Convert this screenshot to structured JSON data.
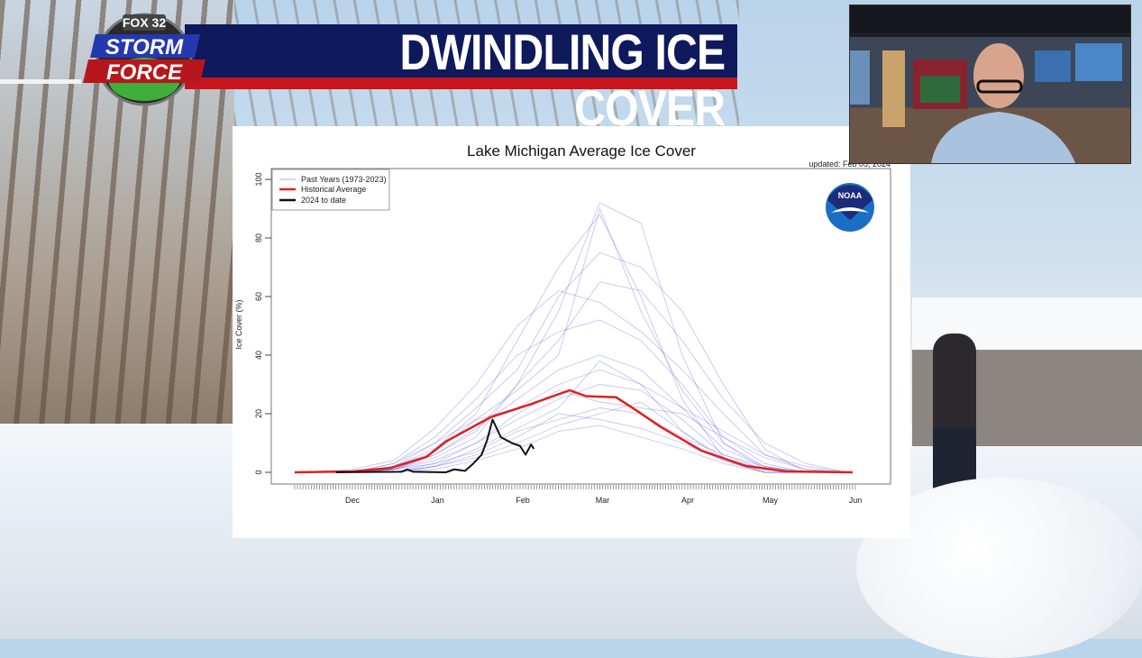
{
  "broadcast": {
    "station_logo": "FOX 32",
    "logo_line1": "STORM",
    "logo_line2": "FORCE",
    "headline": "DWINDLING ICE COVER"
  },
  "colors": {
    "banner_blue": "#0e1a5c",
    "banner_red": "#c8151b",
    "past_years": "#5a5ae6",
    "historical_average": "#e0201c",
    "current_year": "#111111",
    "noaa_blue": "#1a6fc4"
  },
  "chart_data": {
    "type": "line",
    "title": "Lake Michigan Average Ice Cover",
    "updated": "updated: Feb 05, 2024",
    "xlabel": "",
    "ylabel": "Ice Cover (%)",
    "ylim": [
      0,
      100
    ],
    "yticks": [
      0,
      20,
      40,
      60,
      80,
      100
    ],
    "x_units": "days since Dec 1",
    "xlim": [
      -21,
      183
    ],
    "month_ticks": [
      {
        "label": "Dec",
        "day": 0
      },
      {
        "label": "Jan",
        "day": 31
      },
      {
        "label": "Feb",
        "day": 62
      },
      {
        "label": "Mar",
        "day": 91
      },
      {
        "label": "Apr",
        "day": 122
      },
      {
        "label": "May",
        "day": 152
      },
      {
        "label": "Jun",
        "day": 183
      }
    ],
    "legend": {
      "position": "top-left",
      "entries": [
        "Past Years (1973-2023)",
        "Historical Average",
        "2024 to date"
      ]
    },
    "logo": "NOAA",
    "series": [
      {
        "name": "Historical Average",
        "x": [
          -21,
          0,
          14,
          27,
          34,
          50,
          65,
          79,
          85,
          96,
          104,
          112,
          127,
          143,
          158,
          182
        ],
        "y": [
          0,
          0.3,
          1.5,
          5.3,
          10.5,
          18.7,
          23.3,
          28,
          26,
          25.6,
          20.7,
          15.6,
          7.4,
          2.2,
          0.3,
          0
        ]
      },
      {
        "name": "2024 to date",
        "x": [
          -6,
          18,
          20,
          22,
          34,
          37,
          41,
          44,
          47,
          49,
          51,
          54,
          58,
          61,
          63,
          65,
          66
        ],
        "y": [
          0,
          0.2,
          1,
          0.2,
          0,
          1,
          0.5,
          3,
          6,
          11,
          18,
          12,
          10,
          9,
          6,
          9.5,
          8
        ]
      },
      {
        "name": "Past Years (1973-2023)",
        "x": [
          -15,
          0,
          15,
          30,
          45,
          60,
          75,
          90,
          105,
          120,
          135,
          150,
          165,
          180
        ],
        "years": [
          [
            0,
            0,
            2,
            8,
            20,
            45,
            70,
            88,
            60,
            25,
            5,
            0,
            0,
            0
          ],
          [
            0,
            0,
            1,
            5,
            12,
            30,
            55,
            92,
            85,
            40,
            10,
            1,
            0,
            0
          ],
          [
            0,
            0,
            0,
            3,
            10,
            18,
            25,
            30,
            28,
            18,
            6,
            1,
            0,
            0
          ],
          [
            0,
            0,
            3,
            12,
            25,
            40,
            48,
            52,
            45,
            30,
            12,
            3,
            0,
            0
          ],
          [
            0,
            0,
            0,
            2,
            6,
            12,
            20,
            18,
            15,
            10,
            4,
            0,
            0,
            0
          ],
          [
            0,
            0,
            1,
            6,
            15,
            25,
            35,
            40,
            35,
            22,
            8,
            2,
            0,
            0
          ],
          [
            0,
            0,
            2,
            10,
            22,
            35,
            60,
            75,
            70,
            55,
            30,
            8,
            0,
            0
          ],
          [
            0,
            0,
            0,
            1,
            4,
            8,
            14,
            16,
            12,
            8,
            3,
            0,
            0,
            0
          ],
          [
            0,
            1,
            4,
            15,
            30,
            50,
            62,
            58,
            48,
            35,
            20,
            6,
            1,
            0
          ],
          [
            0,
            0,
            1,
            4,
            10,
            20,
            28,
            24,
            22,
            20,
            12,
            5,
            1,
            0
          ],
          [
            0,
            0,
            0,
            2,
            8,
            15,
            22,
            38,
            30,
            14,
            4,
            0,
            0,
            0
          ],
          [
            0,
            0,
            2,
            7,
            18,
            28,
            40,
            90,
            55,
            28,
            10,
            2,
            0,
            0
          ],
          [
            0,
            0,
            1,
            3,
            7,
            14,
            18,
            22,
            20,
            12,
            6,
            2,
            0,
            0
          ],
          [
            0,
            0,
            3,
            10,
            18,
            22,
            30,
            35,
            30,
            22,
            14,
            6,
            2,
            0
          ],
          [
            0,
            0,
            1,
            6,
            14,
            30,
            45,
            65,
            62,
            45,
            25,
            10,
            3,
            0
          ],
          [
            0,
            0,
            0,
            2,
            5,
            10,
            16,
            20,
            24,
            14,
            5,
            1,
            0,
            0
          ]
        ]
      }
    ]
  }
}
